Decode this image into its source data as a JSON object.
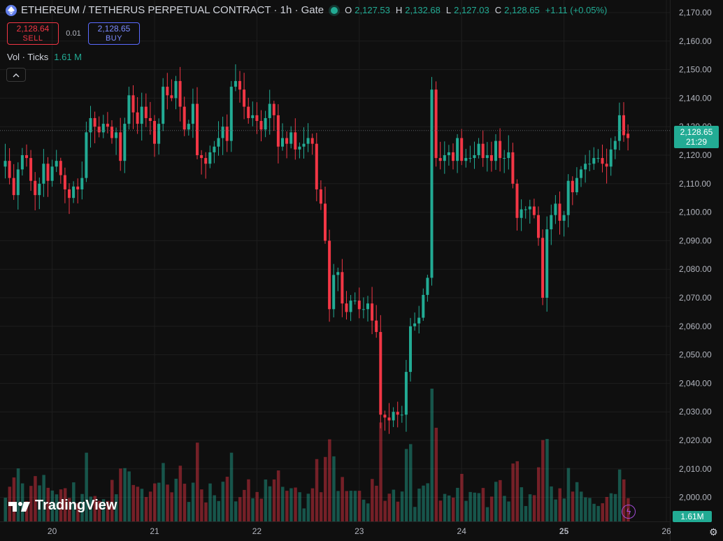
{
  "header": {
    "symbol_title": "ETHEREUM / TETHERUS PERPETUAL CONTRACT · 1h · Gate",
    "ohlc": {
      "o_label": "O",
      "o": "2,127.53",
      "h_label": "H",
      "h": "2,132.68",
      "l_label": "L",
      "l": "2,127.03",
      "c_label": "C",
      "c": "2,128.65",
      "change": "+1.11 (+0.05%)"
    }
  },
  "trade": {
    "sell_price": "2,128.64",
    "sell_label": "SELL",
    "spread": "0.01",
    "buy_price": "2,128.65",
    "buy_label": "BUY"
  },
  "volume_legend": {
    "label": "Vol · Ticks",
    "value": "1.61 M"
  },
  "price_tag": {
    "price": "2,128.65",
    "countdown": "21:29"
  },
  "volume_tag": "1.61M",
  "branding": "TradingView",
  "icons": {
    "collapse": "chevron-up-icon",
    "bolt": "lightning-icon",
    "settings": "gear-icon"
  },
  "colors": {
    "up": "#22ab94",
    "down": "#f23645",
    "background": "#0f0f0f"
  },
  "chart_data": {
    "type": "candlestick",
    "interval": "1h",
    "y_ticks": [
      "2,170.00",
      "2,160.00",
      "2,150.00",
      "2,140.00",
      "2,130.00",
      "2,120.00",
      "2,110.00",
      "2,100.00",
      "2,090.00",
      "2,080.00",
      "2,070.00",
      "2,060.00",
      "2,050.00",
      "2,040.00",
      "2,030.00",
      "2,020.00",
      "2,010.00",
      "2,000.00"
    ],
    "y_tick_values": [
      2170,
      2160,
      2150,
      2140,
      2130,
      2120,
      2110,
      2100,
      2090,
      2080,
      2070,
      2060,
      2050,
      2040,
      2030,
      2020,
      2010,
      2000
    ],
    "x_ticks": [
      "20",
      "21",
      "22",
      "23",
      "24",
      "25",
      "26"
    ],
    "x_tick_index": [
      11,
      35,
      59,
      83,
      107,
      131,
      155
    ],
    "ylim": [
      1992,
      2173
    ],
    "last_price": 2128.65,
    "closes": [
      2118,
      2112,
      2106,
      2115,
      2120,
      2119,
      2111,
      2106,
      2110,
      2117,
      2111,
      2116,
      2118,
      2113,
      2108,
      2105,
      2109,
      2108,
      2112,
      2128,
      2133,
      2130,
      2128,
      2131,
      2130,
      2126,
      2128,
      2118,
      2131,
      2141,
      2135,
      2131,
      2137,
      2133,
      2132,
      2124,
      2131,
      2144,
      2141,
      2140,
      2146,
      2137,
      2129,
      2131,
      2138,
      2120,
      2119,
      2117,
      2121,
      2123,
      2126,
      2130,
      2125,
      2144,
      2146,
      2143,
      2137,
      2133,
      2134,
      2132,
      2129,
      2133,
      2138,
      2134,
      2123,
      2126,
      2124,
      2128,
      2122,
      2123,
      2124,
      2126,
      2124,
      2108,
      2103,
      2090,
      2066,
      2078,
      2079,
      2068,
      2065,
      2069,
      2069,
      2066,
      2066,
      2068,
      2062,
      2058,
      2029,
      2028,
      2027,
      2030,
      2029,
      2029,
      2044,
      2060,
      2061,
      2063,
      2071,
      2077,
      2143,
      2119,
      2118,
      2120,
      2121,
      2118,
      2126,
      2118,
      2119,
      2119,
      2120,
      2124,
      2119,
      2120,
      2118,
      2125,
      2119,
      2119,
      2121,
      2110,
      2098,
      2101,
      2101,
      2102,
      2099,
      2091,
      2070,
      2094,
      2099,
      2103,
      2097,
      2099,
      2111,
      2107,
      2112,
      2115,
      2117,
      2117,
      2119,
      2119,
      2117,
      2116,
      2122,
      2125,
      2134,
      2127,
      2126
    ],
    "last_open": 2127.53,
    "volume_scale": "relative"
  }
}
